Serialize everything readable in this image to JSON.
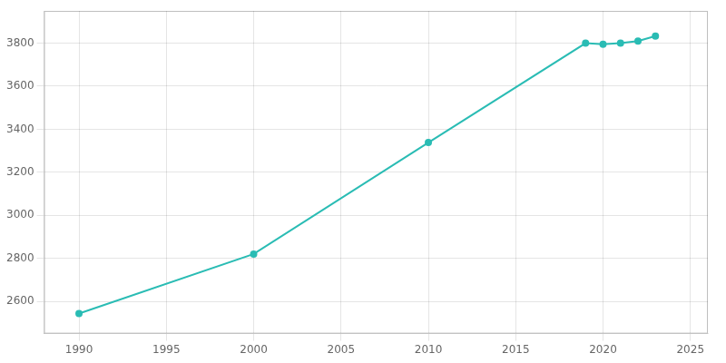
{
  "chart_data": {
    "type": "line",
    "x": [
      1990,
      2000,
      2010,
      2019,
      2020,
      2021,
      2022,
      2023
    ],
    "values": [
      2543,
      2820,
      3338,
      3800,
      3795,
      3800,
      3810,
      3833
    ],
    "color": "#2abcb4",
    "marker": "circle",
    "xlim": [
      1988,
      2026
    ],
    "ylim": [
      2450,
      3950
    ],
    "xticks": [
      1990,
      1995,
      2000,
      2005,
      2010,
      2015,
      2020,
      2025
    ],
    "yticks": [
      2600,
      2800,
      3000,
      3200,
      3400,
      3600,
      3800
    ],
    "grid": true
  }
}
